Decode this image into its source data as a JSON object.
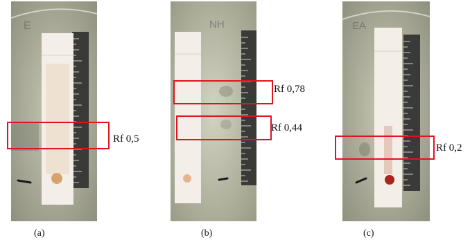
{
  "panels": [
    {
      "id": "a",
      "caption": "(a)",
      "plate_label": "E",
      "rf_labels": [
        "Rf 0,5"
      ],
      "rf_values": [
        0.5
      ],
      "spot_color": "#d9a26a"
    },
    {
      "id": "b",
      "caption": "(b)",
      "plate_label": "NH",
      "rf_labels": [
        "Rf 0,78",
        "Rf 0,44"
      ],
      "rf_values": [
        0.78,
        0.44
      ],
      "spot_color": "#e8b48c"
    },
    {
      "id": "c",
      "caption": "(c)",
      "plate_label": "EA",
      "rf_labels": [
        "Rf 0,2"
      ],
      "rf_values": [
        0.2
      ],
      "spot_color": "#a8241c"
    }
  ],
  "colors": {
    "highlight_box": "#e0141c",
    "plate_bg": "#b8baa3",
    "tlc_strip": "#f3efe8",
    "ruler": "#3a3a38"
  }
}
